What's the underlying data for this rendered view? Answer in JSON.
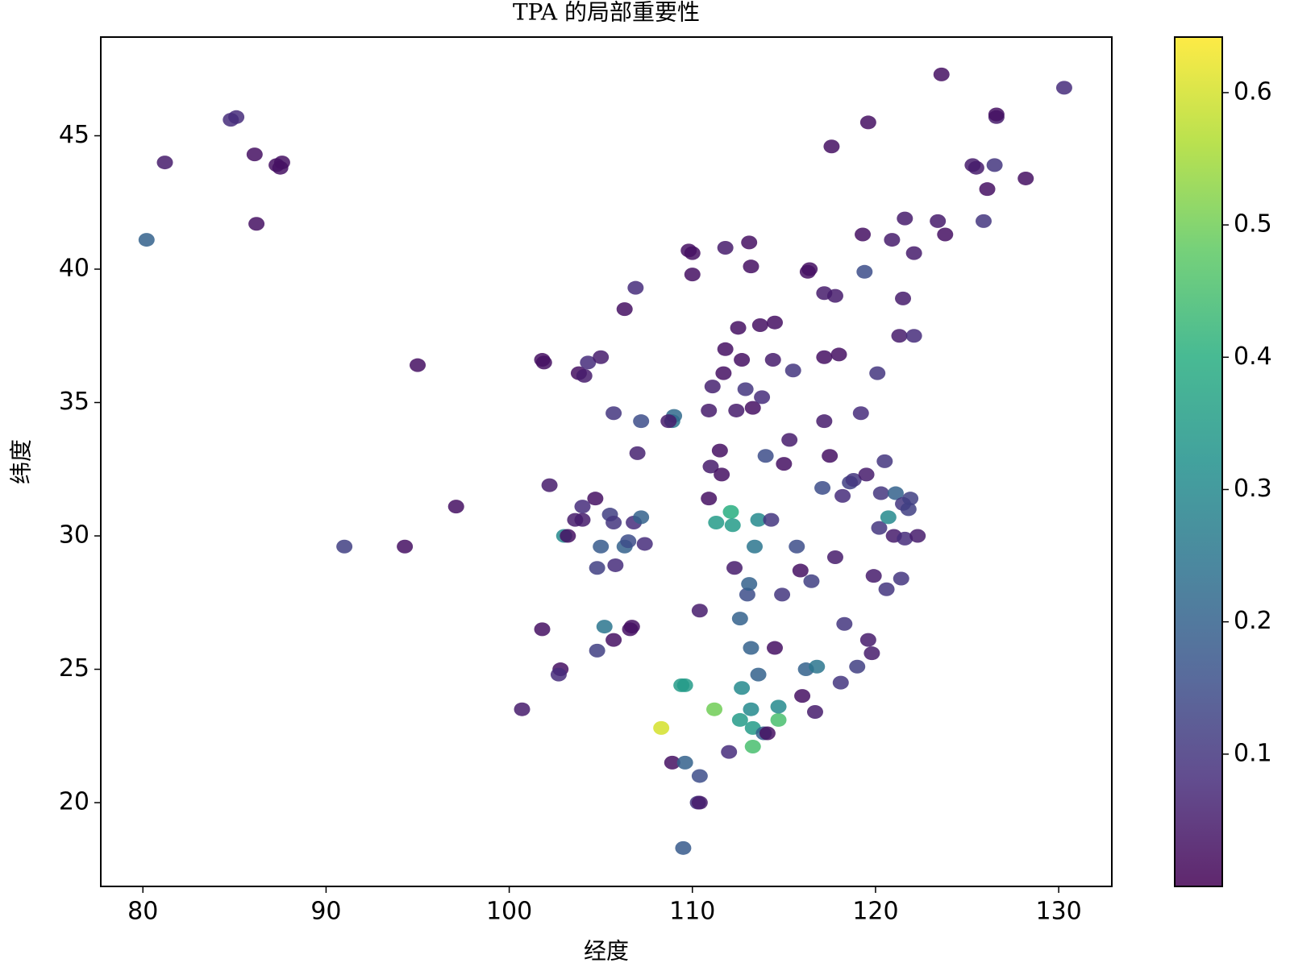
{
  "chart_data": {
    "type": "scatter",
    "title": "TPA 的局部重要性",
    "x_label": "经度",
    "y_label": "纬度",
    "xlim": [
      77.7,
      132.9
    ],
    "ylim": [
      16.86,
      48.7
    ],
    "xticks": [
      80,
      90,
      100,
      110,
      120,
      130
    ],
    "yticks": [
      20,
      25,
      30,
      35,
      40,
      45
    ],
    "colormap": "viridis",
    "clim": [
      0.0,
      0.642
    ],
    "cticks": [
      0.1,
      0.2,
      0.3,
      0.4,
      0.5,
      0.6
    ],
    "x": [
      80.2,
      81.2,
      84.8,
      85.1,
      86.1,
      86.2,
      87.3,
      87.6,
      87.5,
      91.0,
      94.3,
      95.0,
      97.1,
      100.7,
      101.8,
      101.9,
      101.8,
      102.2,
      102.8,
      102.7,
      103.0,
      103.2,
      103.6,
      104.0,
      103.8,
      104.1,
      104.3,
      105.0,
      104.7,
      104.0,
      104.8,
      105.0,
      105.2,
      104.8,
      105.7,
      105.7,
      105.5,
      105.7,
      105.8,
      106.3,
      106.3,
      106.5,
      106.7,
      106.6,
      106.8,
      106.9,
      107.0,
      107.2,
      107.4,
      107.2,
      108.3,
      108.9,
      109.0,
      108.7,
      108.9,
      109.4,
      109.6,
      109.6,
      109.5,
      109.8,
      110.0,
      110.0,
      110.3,
      110.4,
      110.4,
      110.4,
      110.9,
      110.9,
      111.0,
      111.1,
      111.3,
      111.2,
      111.5,
      111.6,
      111.8,
      111.7,
      111.8,
      112.1,
      112.2,
      112.0,
      112.3,
      112.5,
      112.4,
      112.6,
      112.7,
      112.6,
      112.9,
      113.0,
      113.1,
      113.2,
      113.3,
      113.3,
      113.2,
      113.3,
      113.2,
      113.1,
      113.4,
      113.6,
      113.7,
      113.6,
      113.9,
      114.0,
      114.1,
      114.3,
      114.4,
      114.5,
      114.5,
      114.7,
      114.7,
      114.9,
      115.3,
      115.5,
      115.7,
      115.9,
      116.0,
      116.3,
      116.4,
      116.2,
      116.7,
      116.8,
      117.1,
      117.2,
      117.2,
      117.2,
      117.6,
      117.8,
      118.0,
      118.1,
      118.3,
      118.6,
      118.8,
      119.0,
      119.2,
      119.3,
      119.4,
      119.6,
      119.6,
      119.8,
      119.9,
      120.2,
      120.1,
      120.3,
      120.6,
      120.7,
      120.9,
      121.0,
      121.1,
      121.3,
      121.4,
      121.5,
      121.5,
      121.6,
      121.6,
      121.8,
      122.1,
      122.1,
      122.3,
      123.4,
      123.6,
      123.8,
      125.3,
      125.5,
      125.9,
      126.1,
      126.6,
      126.6,
      126.5,
      128.2,
      130.3,
      117.5,
      118.2,
      119.5,
      120.5,
      121.9,
      117.8,
      116.5,
      115.0,
      113.8,
      112.7
    ],
    "values": [
      41.1,
      44.0,
      45.6,
      45.7,
      44.3,
      41.7,
      43.9,
      44.0,
      43.8,
      29.6,
      29.6,
      36.4,
      31.1,
      23.5,
      36.6,
      36.5,
      26.5,
      31.9,
      25.0,
      24.8,
      30.0,
      30.0,
      30.6,
      30.6,
      36.1,
      36.0,
      36.5,
      36.7,
      31.4,
      31.1,
      28.8,
      29.6,
      26.6,
      25.7,
      26.1,
      34.6,
      30.8,
      30.5,
      28.9,
      38.5,
      29.6,
      29.8,
      26.6,
      26.5,
      30.5,
      39.3,
      33.1,
      34.3,
      29.7,
      30.7,
      22.8,
      34.3,
      34.5,
      34.3,
      21.5,
      24.4,
      24.4,
      21.5,
      18.3,
      40.7,
      39.8,
      40.6,
      20.0,
      20.0,
      21.0,
      27.2,
      34.7,
      31.4,
      32.6,
      35.6,
      30.5,
      23.5,
      33.2,
      32.3,
      40.8,
      36.1,
      37.0,
      30.9,
      30.4,
      21.9,
      28.8,
      37.8,
      34.7,
      26.9,
      24.3,
      23.1,
      35.5,
      27.8,
      28.2,
      25.8,
      22.8,
      22.1,
      23.5,
      34.8,
      40.1,
      41.0,
      29.6,
      30.6,
      37.9,
      24.8,
      22.6,
      33.0,
      22.6,
      30.6,
      36.6,
      25.8,
      38.0,
      23.1,
      23.6,
      27.8,
      33.6,
      36.2,
      29.6,
      28.7,
      24.0,
      39.9,
      40.0,
      25.0,
      23.4,
      25.1,
      31.8,
      39.1,
      36.7,
      34.3,
      44.6,
      39.0,
      36.8,
      24.5,
      26.7,
      32.0,
      32.1,
      25.1,
      34.6,
      41.3,
      39.9,
      45.5,
      26.1,
      25.6,
      28.5,
      30.3,
      36.1,
      31.6,
      28.0,
      30.7,
      41.1,
      30.0,
      31.6,
      37.5,
      28.4,
      31.2,
      38.9,
      29.9,
      41.9,
      31.0,
      37.5,
      40.6,
      30.0,
      41.8,
      47.3,
      41.3,
      43.9,
      43.8,
      41.8,
      43.0,
      45.7,
      45.8,
      43.9,
      43.4,
      46.8,
      33.0,
      31.5,
      32.3,
      32.8,
      31.4,
      29.2,
      28.3,
      32.7,
      35.2,
      36.6
    ],
    "color_values": [
      0.2,
      0.05,
      0.08,
      0.08,
      0.03,
      0.03,
      0.03,
      0.03,
      0.03,
      0.12,
      0.03,
      0.03,
      0.03,
      0.05,
      0.03,
      0.03,
      0.03,
      0.05,
      0.03,
      0.08,
      0.3,
      0.03,
      0.05,
      0.05,
      0.03,
      0.05,
      0.08,
      0.05,
      0.03,
      0.08,
      0.12,
      0.18,
      0.25,
      0.12,
      0.03,
      0.1,
      0.12,
      0.1,
      0.08,
      0.03,
      0.2,
      0.15,
      0.03,
      0.03,
      0.08,
      0.08,
      0.06,
      0.15,
      0.08,
      0.2,
      0.6,
      0.25,
      0.22,
      0.05,
      0.03,
      0.35,
      0.35,
      0.2,
      0.18,
      0.03,
      0.03,
      0.03,
      0.1,
      0.05,
      0.15,
      0.05,
      0.05,
      0.03,
      0.05,
      0.06,
      0.35,
      0.5,
      0.03,
      0.03,
      0.05,
      0.03,
      0.03,
      0.4,
      0.35,
      0.08,
      0.05,
      0.03,
      0.05,
      0.2,
      0.3,
      0.35,
      0.1,
      0.15,
      0.2,
      0.2,
      0.35,
      0.45,
      0.3,
      0.03,
      0.03,
      0.03,
      0.25,
      0.3,
      0.03,
      0.2,
      0.2,
      0.15,
      0.03,
      0.1,
      0.05,
      0.03,
      0.03,
      0.45,
      0.3,
      0.1,
      0.05,
      0.1,
      0.15,
      0.03,
      0.03,
      0.03,
      0.03,
      0.2,
      0.05,
      0.25,
      0.15,
      0.05,
      0.03,
      0.05,
      0.03,
      0.05,
      0.03,
      0.1,
      0.1,
      0.12,
      0.1,
      0.12,
      0.08,
      0.03,
      0.15,
      0.03,
      0.05,
      0.05,
      0.05,
      0.1,
      0.1,
      0.1,
      0.1,
      0.3,
      0.05,
      0.05,
      0.2,
      0.05,
      0.1,
      0.1,
      0.05,
      0.08,
      0.05,
      0.12,
      0.08,
      0.05,
      0.05,
      0.05,
      0.03,
      0.03,
      0.05,
      0.05,
      0.1,
      0.03,
      0.05,
      0.03,
      0.1,
      0.03,
      0.08,
      0.03,
      0.08,
      0.05,
      0.1,
      0.12,
      0.05,
      0.12,
      0.03,
      0.08,
      0.03
    ]
  }
}
